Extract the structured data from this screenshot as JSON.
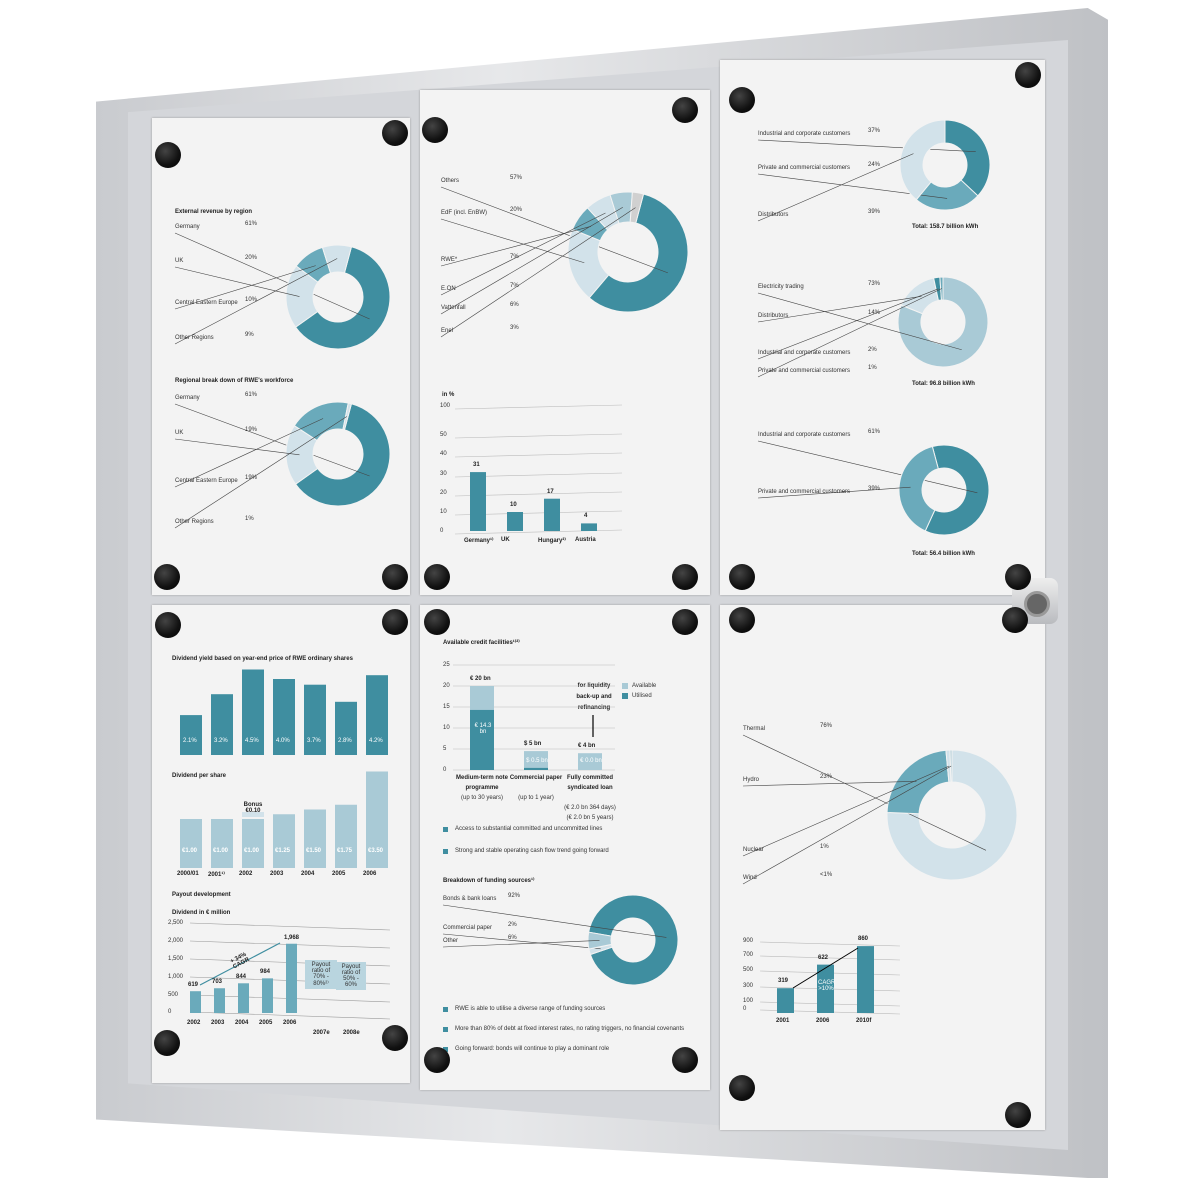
{
  "colors": {
    "dark": "#3f8ea0",
    "mid": "#6aaabb",
    "light": "#a9cad6",
    "pale": "#d2e2ea",
    "frame": "#c9cbcf"
  },
  "panel1": {
    "chart1": {
      "title": "External revenue by region",
      "items": [
        {
          "label": "Germany",
          "pct": "61%",
          "value": 61,
          "shade": "dark"
        },
        {
          "label": "UK",
          "pct": "20%",
          "value": 20,
          "shade": "pale"
        },
        {
          "label": "Central Eastern Europe",
          "pct": "10%",
          "value": 10,
          "shade": "mid"
        },
        {
          "label": "Other Regions",
          "pct": "9%",
          "value": 9,
          "shade": "pale"
        }
      ]
    },
    "chart2": {
      "title": "Regional break down of RWE's workforce",
      "items": [
        {
          "label": "Germany",
          "pct": "61%",
          "value": 61,
          "shade": "dark"
        },
        {
          "label": "UK",
          "pct": "19%",
          "value": 19,
          "shade": "pale"
        },
        {
          "label": "Central Eastern Europe",
          "pct": "19%",
          "value": 19,
          "shade": "mid"
        },
        {
          "label": "Other Regions",
          "pct": "1%",
          "value": 1,
          "shade": "pale"
        }
      ]
    }
  },
  "panel2": {
    "donut": {
      "items": [
        {
          "label": "Others",
          "pct": "57%",
          "value": 57,
          "shade": "dark"
        },
        {
          "label": "EdF (incl. EnBW)",
          "pct": "20%",
          "value": 20,
          "shade": "pale"
        },
        {
          "label": "RWE*",
          "pct": "7%",
          "value": 7,
          "shade": "mid"
        },
        {
          "label": "E.ON",
          "pct": "7%",
          "value": 7,
          "shade": "pale"
        },
        {
          "label": "Vattenfall",
          "pct": "6%",
          "value": 6,
          "shade": "light"
        },
        {
          "label": "Enel",
          "pct": "3%",
          "value": 3,
          "shade": "grey"
        }
      ]
    },
    "bar": {
      "ylabel": "in %",
      "ticks": [
        "100",
        "50",
        "40",
        "30",
        "20",
        "10",
        "0"
      ],
      "categories": [
        "Germany¹⁾",
        "UK",
        "Hungary²⁾",
        "Austria"
      ],
      "values": [
        31,
        10,
        17,
        4
      ]
    }
  },
  "panel3": {
    "donut1": {
      "total": "Total: 158.7 billion kWh",
      "items": [
        {
          "label": "Industrial and corporate customers",
          "pct": "37%",
          "value": 37,
          "shade": "dark"
        },
        {
          "label": "Private and commercial customers",
          "pct": "24%",
          "value": 24,
          "shade": "mid"
        },
        {
          "label": "Distributors",
          "pct": "39%",
          "value": 39,
          "shade": "pale"
        }
      ]
    },
    "donut2": {
      "total": "Total: 96.8 billion kWh",
      "items": [
        {
          "label": "Electricity trading",
          "pct": "73%",
          "value": 73,
          "shade": "light"
        },
        {
          "label": "Distributors",
          "pct": "14%",
          "value": 14,
          "shade": "pale"
        },
        {
          "label": "Industrial and corporate customers",
          "pct": "2%",
          "value": 2,
          "shade": "dark"
        },
        {
          "label": "Private and commercial customers",
          "pct": "1%",
          "value": 1,
          "shade": "mid"
        }
      ]
    },
    "donut3": {
      "total": "Total: 56.4 billion kWh",
      "items": [
        {
          "label": "Industrial and corporate customers",
          "pct": "61%",
          "value": 61,
          "shade": "dark"
        },
        {
          "label": "Private and commercial customers",
          "pct": "39%",
          "value": 39,
          "shade": "mid"
        }
      ]
    }
  },
  "panel4": {
    "yield": {
      "title": "Dividend yield based on year-end price of RWE ordinary shares",
      "labels": [
        "2.1%",
        "3.2%",
        "4.5%",
        "4.0%",
        "3.7%",
        "2.8%",
        "4.2%"
      ],
      "values": [
        2.1,
        3.2,
        4.5,
        4.0,
        3.7,
        2.8,
        4.2
      ]
    },
    "dps": {
      "title": "Dividend per share",
      "bonus": "Bonus €0.10",
      "categories": [
        "2000/01",
        "2001¹⁾",
        "2002",
        "2003",
        "2004",
        "2005",
        "2006"
      ],
      "labels": [
        "€1.00",
        "€1.00",
        "€1.00",
        "€1.25",
        "€1.50",
        "€1.75",
        "€3.50"
      ],
      "values": [
        1.0,
        1.0,
        1.0,
        1.25,
        1.5,
        1.75,
        3.5
      ]
    },
    "payout": {
      "title": "Payout development",
      "subtitle": "Dividend in € million",
      "ticks": [
        "2,500",
        "2,000",
        "1,500",
        "1,000",
        "500",
        "0"
      ],
      "categories": [
        "2002",
        "2003",
        "2004",
        "2005",
        "2006",
        "2007e",
        "2008e"
      ],
      "values": [
        619,
        703,
        844,
        984,
        1968
      ],
      "labels": [
        "619",
        "703",
        "844",
        "984",
        "1,968"
      ],
      "cagr": "+ 34% CAGR",
      "box1": "Payout ratio of 70% - 80%²⁾",
      "box2": "Payout ratio of 50% - 60%"
    }
  },
  "panel5": {
    "credit": {
      "title": "Available credit facilities¹⁾²⁾",
      "ticks": [
        "25",
        "20",
        "15",
        "10",
        "5",
        "0"
      ],
      "legend": [
        "Available",
        "Utilised"
      ],
      "note": "for liquidity back-up and refinancing",
      "bars": [
        {
          "total": "€ 20 bn",
          "totalValue": 20,
          "utilised": 14.3,
          "inner": "€ 14.3 bn",
          "cat": "Medium-term note programme",
          "sub": "(up to 30 years)"
        },
        {
          "total": "$ 5 bn",
          "totalValue": 4.5,
          "utilised": 0.5,
          "inner": "$ 0.5 bn",
          "cat": "Commercial paper",
          "sub": "(up to 1 year)"
        },
        {
          "total": "€ 4 bn",
          "totalValue": 4,
          "utilised": 0,
          "inner": "€ 0.0 bn",
          "cat": "Fully committed syndicated loan",
          "sub": "(€ 2.0 bn 364 days) (€ 2.0 bn 5 years)"
        }
      ]
    },
    "bullets1": [
      "Access to substantial committed and uncommitted lines",
      "Strong and stable operating cash flow trend going forward"
    ],
    "funding": {
      "title": "Breakdown of funding sources¹⁾",
      "items": [
        {
          "label": "Bonds & bank loans",
          "pct": "92%",
          "value": 92,
          "shade": "dark"
        },
        {
          "label": "Commercial paper",
          "pct": "2%",
          "value": 2,
          "shade": "pale"
        },
        {
          "label": "Other",
          "pct": "6%",
          "value": 6,
          "shade": "light"
        }
      ]
    },
    "bullets2": [
      "RWE is able to utilise a diverse range of funding sources",
      "More than 80% of debt at fixed interest rates, no rating triggers, no financial covenants",
      "Going forward: bonds will continue to play a dominant role"
    ]
  },
  "panel6": {
    "donut": {
      "items": [
        {
          "label": "Thermal",
          "pct": "76%",
          "value": 76,
          "shade": "pale"
        },
        {
          "label": "Hydro",
          "pct": "23%",
          "value": 23,
          "shade": "mid"
        },
        {
          "label": "Nuclear",
          "pct": "1%",
          "value": 1,
          "shade": "pale"
        },
        {
          "label": "Wind",
          "pct": "<1%",
          "value": 0.5,
          "shade": "light"
        }
      ]
    },
    "bar": {
      "ticks": [
        "900",
        "700",
        "500",
        "300",
        "100",
        "0"
      ],
      "categories": [
        "2001",
        "2006",
        "2010f"
      ],
      "values": [
        319,
        622,
        860
      ],
      "labels": [
        "319",
        "622",
        "860"
      ],
      "cagr": "CAGR >10%"
    }
  }
}
